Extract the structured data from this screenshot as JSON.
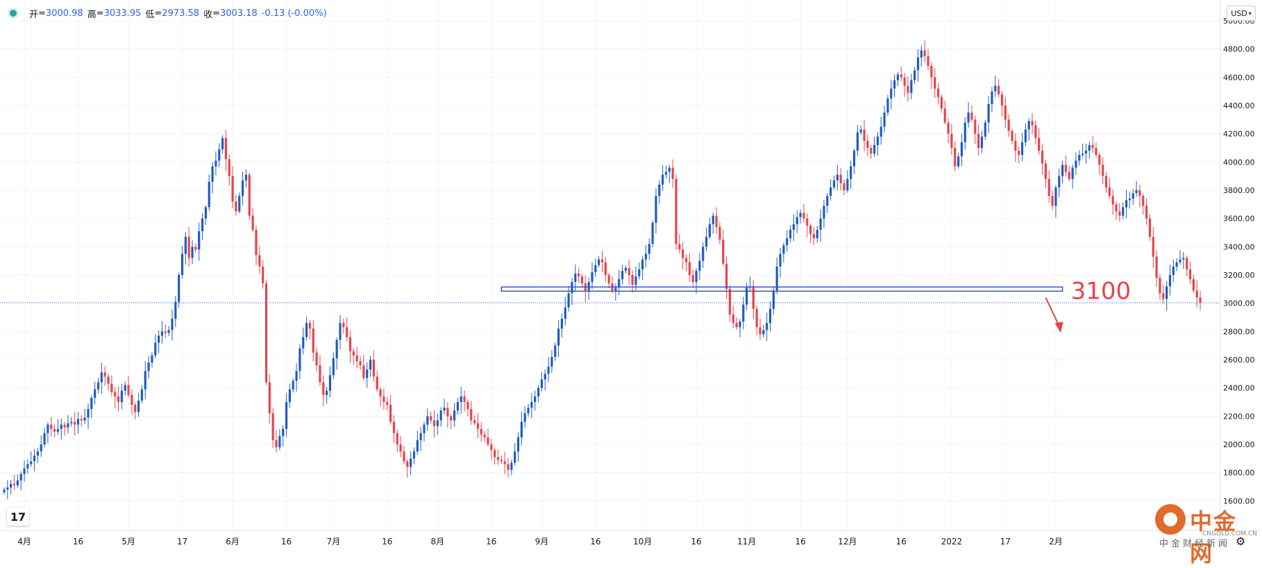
{
  "legend": {
    "open_label": "开",
    "open_value": "3000.98",
    "high_label": "高",
    "high_value": "3033.95",
    "low_label": "低",
    "low_value": "2973.58",
    "close_label": "收",
    "close_value": "3003.18",
    "change": "-0.13 (-0.00%)"
  },
  "currency_select": "USD",
  "tv_logo": "17",
  "price_tag": "3003.18",
  "annotation_text": "3100",
  "watermark": {
    "name": "中金网",
    "url": "CNGOLD.COM.CN",
    "slogan": "中金财经新闻"
  },
  "colors": {
    "up": "#1e5bc6",
    "down": "#e8434a",
    "annotation": "#e8434a",
    "level_line": "#2e57c6",
    "price_line": "#2962ff"
  },
  "chart_data": {
    "type": "candlestick",
    "y_axis": {
      "min": 1400,
      "max": 5000,
      "ticks": [
        1600,
        1800,
        2000,
        2200,
        2400,
        2600,
        2800,
        3000,
        3200,
        3400,
        3600,
        3800,
        4000,
        4200,
        4400,
        4600,
        4800,
        5000
      ],
      "tick_labels": [
        "1600.00",
        "1800.00",
        "2000.00",
        "2200.00",
        "2400.00",
        "2600.00",
        "2800.00",
        "3000.00",
        "3200.00",
        "3400.00",
        "3600.00",
        "3800.00",
        "4000.00",
        "4200.00",
        "4400.00",
        "4600.00",
        "4800.00",
        "5000.00"
      ]
    },
    "x_axis": {
      "labels": [
        "4月",
        "16",
        "5月",
        "17",
        "6月",
        "16",
        "7月",
        "16",
        "8月",
        "16",
        "9月",
        "16",
        "10月",
        "16",
        "11月",
        "16",
        "12月",
        "16",
        "2022",
        "17",
        "2月"
      ],
      "label_days": [
        6,
        22,
        37,
        53,
        68,
        84,
        98,
        114,
        129,
        145,
        160,
        176,
        190,
        206,
        221,
        237,
        251,
        267,
        282,
        298,
        313
      ]
    },
    "price_line": 3003.18,
    "horizontal_level": {
      "price": 3100,
      "label": "3100",
      "start_day": 148,
      "end_day": 315
    },
    "arrow": {
      "from_day": 310,
      "from_price": 3040,
      "to_day": 314,
      "to_price": 2800
    },
    "candles_close": [
      1680,
      1695,
      1720,
      1710,
      1745,
      1790,
      1830,
      1860,
      1880,
      1920,
      1950,
      2000,
      2080,
      2140,
      2110,
      2090,
      2110,
      2140,
      2120,
      2150,
      2160,
      2140,
      2180,
      2170,
      2190,
      2250,
      2330,
      2390,
      2440,
      2510,
      2480,
      2430,
      2370,
      2340,
      2300,
      2380,
      2420,
      2350,
      2280,
      2230,
      2310,
      2390,
      2520,
      2580,
      2630,
      2720,
      2770,
      2800,
      2790,
      2810,
      2890,
      3010,
      3200,
      3350,
      3470,
      3320,
      3400,
      3380,
      3510,
      3600,
      3680,
      3860,
      3970,
      4010,
      4090,
      4170,
      4020,
      3900,
      3720,
      3650,
      3760,
      3870,
      3910,
      3620,
      3520,
      3340,
      3260,
      3140,
      2440,
      2220,
      2030,
      1980,
      2060,
      2110,
      2300,
      2390,
      2450,
      2520,
      2680,
      2760,
      2860,
      2820,
      2650,
      2560,
      2440,
      2350,
      2380,
      2490,
      2610,
      2740,
      2860,
      2830,
      2760,
      2660,
      2630,
      2590,
      2560,
      2470,
      2530,
      2600,
      2480,
      2390,
      2340,
      2300,
      2280,
      2160,
      2080,
      2000,
      1950,
      1880,
      1840,
      1900,
      1950,
      2030,
      2080,
      2140,
      2200,
      2170,
      2130,
      2170,
      2240,
      2260,
      2200,
      2170,
      2240,
      2300,
      2340,
      2300,
      2250,
      2170,
      2150,
      2110,
      2070,
      2050,
      2000,
      1960,
      1910,
      1890,
      1880,
      1860,
      1820,
      1870,
      1950,
      2050,
      2160,
      2220,
      2260,
      2300,
      2340,
      2400,
      2460,
      2500,
      2550,
      2620,
      2700,
      2820,
      2890,
      2970,
      3070,
      3150,
      3210,
      3190,
      3140,
      3090,
      3150,
      3220,
      3270,
      3310,
      3290,
      3200,
      3140,
      3090,
      3110,
      3170,
      3230,
      3250,
      3200,
      3130,
      3190,
      3240,
      3310,
      3350,
      3420,
      3570,
      3760,
      3840,
      3910,
      3930,
      3960,
      3880,
      3420,
      3380,
      3320,
      3290,
      3200,
      3150,
      3230,
      3300,
      3400,
      3470,
      3560,
      3620,
      3540,
      3450,
      3280,
      3100,
      2920,
      2860,
      2830,
      2870,
      2990,
      3110,
      3120,
      2960,
      2830,
      2780,
      2810,
      2860,
      2960,
      3090,
      3260,
      3350,
      3410,
      3460,
      3520,
      3560,
      3610,
      3640,
      3600,
      3550,
      3490,
      3460,
      3520,
      3600,
      3690,
      3760,
      3820,
      3870,
      3910,
      3850,
      3800,
      3880,
      3970,
      4080,
      4210,
      4230,
      4150,
      4100,
      4060,
      4120,
      4180,
      4250,
      4350,
      4450,
      4520,
      4580,
      4620,
      4600,
      4540,
      4490,
      4580,
      4650,
      4740,
      4790,
      4750,
      4680,
      4600,
      4520,
      4460,
      4380,
      4280,
      4200,
      4100,
      3970,
      4040,
      4140,
      4280,
      4350,
      4300,
      4200,
      4100,
      4180,
      4280,
      4410,
      4500,
      4540,
      4480,
      4400,
      4300,
      4220,
      4150,
      4080,
      4050,
      4140,
      4230,
      4290,
      4260,
      4170,
      4080,
      3990,
      3880,
      3760,
      3690,
      3820,
      3900,
      3980,
      3930,
      3880,
      3960,
      4010,
      4050,
      4060,
      4080,
      4120,
      4100,
      4050,
      3980,
      3900,
      3820,
      3760,
      3700,
      3650,
      3620,
      3680,
      3730,
      3740,
      3780,
      3800,
      3760,
      3690,
      3600,
      3470,
      3330,
      3180,
      3070,
      3030,
      3120,
      3200,
      3260,
      3290,
      3310,
      3320,
      3240,
      3170,
      3090,
      3040,
      3003
    ]
  }
}
